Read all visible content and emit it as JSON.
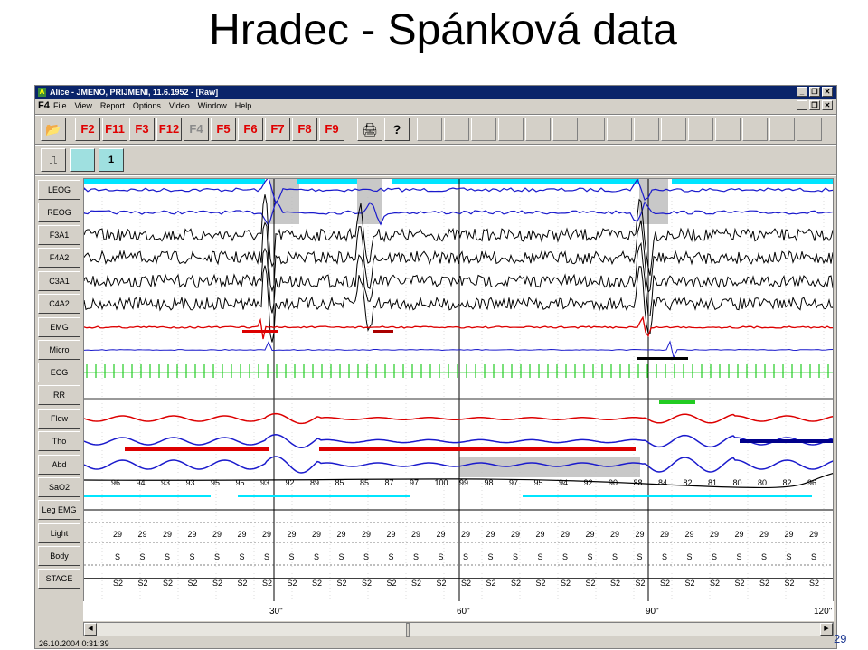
{
  "slide": {
    "title": "Hradec - Spánková data",
    "page_number": "29"
  },
  "window": {
    "title": "Alice - JMENO, PRIJMENI, 11.6.1952 - [Raw]",
    "icon": "alice-app-icon"
  },
  "menubar": {
    "f4": "F4",
    "items": [
      "File",
      "View",
      "Report",
      "Options",
      "Video",
      "Window",
      "Help"
    ]
  },
  "toolbar": {
    "keys": [
      "F2",
      "F11",
      "F3",
      "F12",
      "F4",
      "F5",
      "F6",
      "F7",
      "F8",
      "F9"
    ],
    "dim_key": "F4",
    "icons": [
      "open-folder-icon",
      "printer-icon",
      "help-icon"
    ]
  },
  "toolbar2": {
    "icons": [
      "montage-icon",
      "single-page-icon"
    ],
    "page_label": "1"
  },
  "channels": [
    "LEOG",
    "REOG",
    "F3A1",
    "F4A2",
    "C3A1",
    "C4A2",
    "EMG",
    "Micro",
    "ECG",
    "RR",
    "Flow",
    "Tho",
    "Abd",
    "SaO2",
    "Leg EMG",
    "Light",
    "Body",
    "STAGE"
  ],
  "colors": {
    "eog": "#1a1acc",
    "eeg": "#000000",
    "emg": "#dd0000",
    "micro": "#1a1acc",
    "ecg": "#22cc22",
    "flow": "#dd0000",
    "tho_abd": "#1a1acc",
    "cyan_marker": "#00e5ff",
    "highlight": "#c8c8c8"
  },
  "sao2_values": [
    "96",
    "94",
    "93",
    "93",
    "95",
    "95",
    "93",
    "92",
    "89",
    "85",
    "85",
    "87",
    "97",
    "100",
    "99",
    "98",
    "97",
    "95",
    "94",
    "92",
    "90",
    "88",
    "84",
    "82",
    "81",
    "80",
    "80",
    "82",
    "96"
  ],
  "light_value": "29",
  "body_value": "S",
  "stage_value": "S2",
  "time_axis": [
    "30\"",
    "60\"",
    "90\"",
    "120\""
  ],
  "status": {
    "datetime": "26.10.2004 0:31:39"
  }
}
